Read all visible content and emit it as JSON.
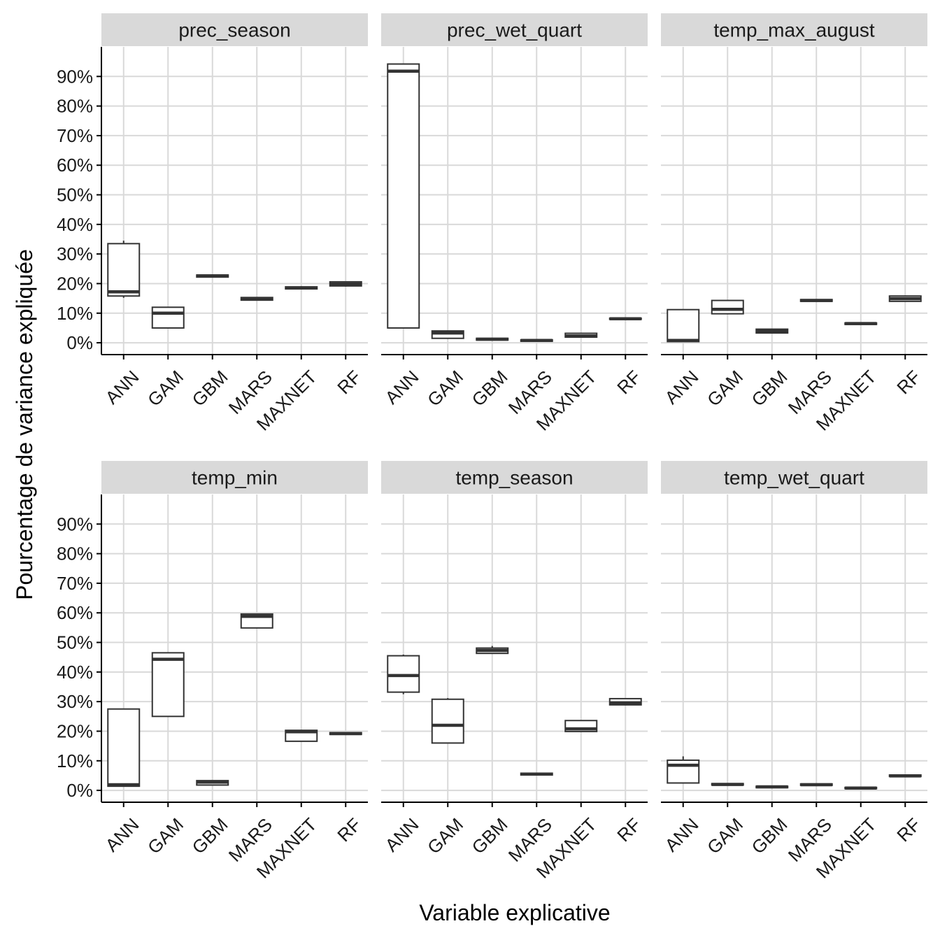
{
  "chart_data": {
    "type": "boxplot",
    "xlabel": "Variable explicative",
    "ylabel": "Pourcentage de variance expliquée",
    "ylim": [
      -4,
      100
    ],
    "yticks": [
      0,
      10,
      20,
      30,
      40,
      50,
      60,
      70,
      80,
      90
    ],
    "ytick_labels": [
      "0%",
      "10%",
      "20%",
      "30%",
      "40%",
      "50%",
      "60%",
      "70%",
      "80%",
      "90%"
    ],
    "categories": [
      "ANN",
      "GAM",
      "GBM",
      "MARS",
      "MAXNET",
      "RF"
    ],
    "grid": true,
    "colors": {
      "strip_bg": "#d9d9d9",
      "grid": "#d9d9d9",
      "box_line": "#333333",
      "axis": "#000000"
    },
    "panels": [
      {
        "title": "prec_season",
        "boxes": [
          {
            "category": "ANN",
            "min": 15.2,
            "q1": 15.8,
            "median": 17.2,
            "q3": 33.5,
            "max": 34.5
          },
          {
            "category": "GAM",
            "min": 5.0,
            "q1": 5.0,
            "median": 10.0,
            "q3": 12.0,
            "max": 12.0
          },
          {
            "category": "GBM",
            "min": 22.0,
            "q1": 22.2,
            "median": 22.6,
            "q3": 22.9,
            "max": 23.1
          },
          {
            "category": "MARS",
            "min": 14.2,
            "q1": 14.4,
            "median": 14.9,
            "q3": 15.3,
            "max": 15.5
          },
          {
            "category": "MAXNET",
            "min": 18.0,
            "q1": 18.2,
            "median": 18.5,
            "q3": 18.9,
            "max": 19.1
          },
          {
            "category": "RF",
            "min": 19.0,
            "q1": 19.2,
            "median": 19.8,
            "q3": 20.6,
            "max": 20.8
          }
        ]
      },
      {
        "title": "prec_wet_quart",
        "boxes": [
          {
            "category": "ANN",
            "min": 5.0,
            "q1": 5.0,
            "median": 91.8,
            "q3": 94.2,
            "max": 94.2
          },
          {
            "category": "GAM",
            "min": 1.5,
            "q1": 1.5,
            "median": 3.3,
            "q3": 4.0,
            "max": 4.0
          },
          {
            "category": "GBM",
            "min": 0.8,
            "q1": 0.9,
            "median": 1.2,
            "q3": 1.5,
            "max": 1.6
          },
          {
            "category": "MARS",
            "min": 0.4,
            "q1": 0.5,
            "median": 0.8,
            "q3": 1.0,
            "max": 1.1
          },
          {
            "category": "MAXNET",
            "min": 1.8,
            "q1": 1.9,
            "median": 2.3,
            "q3": 3.2,
            "max": 3.3
          },
          {
            "category": "RF",
            "min": 7.8,
            "q1": 7.9,
            "median": 8.1,
            "q3": 8.3,
            "max": 8.4
          }
        ]
      },
      {
        "title": "temp_max_august",
        "boxes": [
          {
            "category": "ANN",
            "min": 0.3,
            "q1": 0.4,
            "median": 0.8,
            "q3": 11.2,
            "max": 11.2
          },
          {
            "category": "GAM",
            "min": 9.8,
            "q1": 9.8,
            "median": 11.3,
            "q3": 14.3,
            "max": 14.3
          },
          {
            "category": "GBM",
            "min": 3.3,
            "q1": 3.3,
            "median": 3.9,
            "q3": 4.6,
            "max": 4.7
          },
          {
            "category": "MARS",
            "min": 13.9,
            "q1": 14.0,
            "median": 14.3,
            "q3": 14.6,
            "max": 14.7
          },
          {
            "category": "MAXNET",
            "min": 6.1,
            "q1": 6.2,
            "median": 6.5,
            "q3": 6.7,
            "max": 6.8
          },
          {
            "category": "RF",
            "min": 14.0,
            "q1": 14.0,
            "median": 14.9,
            "q3": 15.8,
            "max": 15.8
          }
        ]
      },
      {
        "title": "temp_min",
        "boxes": [
          {
            "category": "ANN",
            "min": 1.3,
            "q1": 1.4,
            "median": 1.9,
            "q3": 27.5,
            "max": 27.5
          },
          {
            "category": "GAM",
            "min": 25.0,
            "q1": 25.0,
            "median": 44.3,
            "q3": 46.5,
            "max": 46.5
          },
          {
            "category": "GBM",
            "min": 1.7,
            "q1": 1.8,
            "median": 2.8,
            "q3": 3.3,
            "max": 3.4
          },
          {
            "category": "MARS",
            "min": 54.8,
            "q1": 54.9,
            "median": 58.8,
            "q3": 59.6,
            "max": 59.8
          },
          {
            "category": "MAXNET",
            "min": 16.5,
            "q1": 16.6,
            "median": 19.8,
            "q3": 20.3,
            "max": 20.4
          },
          {
            "category": "RF",
            "min": 18.8,
            "q1": 18.9,
            "median": 19.2,
            "q3": 19.5,
            "max": 19.6
          }
        ]
      },
      {
        "title": "temp_season",
        "boxes": [
          {
            "category": "ANN",
            "min": 32.5,
            "q1": 33.2,
            "median": 38.8,
            "q3": 45.5,
            "max": 45.9
          },
          {
            "category": "GAM",
            "min": 16.0,
            "q1": 16.0,
            "median": 22.0,
            "q3": 30.8,
            "max": 31.2
          },
          {
            "category": "GBM",
            "min": 46.2,
            "q1": 46.3,
            "median": 47.3,
            "q3": 48.1,
            "max": 48.8
          },
          {
            "category": "MARS",
            "min": 5.1,
            "q1": 5.2,
            "median": 5.5,
            "q3": 5.8,
            "max": 5.9
          },
          {
            "category": "MAXNET",
            "min": 19.8,
            "q1": 19.9,
            "median": 20.8,
            "q3": 23.6,
            "max": 23.7
          },
          {
            "category": "RF",
            "min": 28.8,
            "q1": 28.9,
            "median": 29.6,
            "q3": 31.0,
            "max": 31.2
          }
        ]
      },
      {
        "title": "temp_wet_quart",
        "boxes": [
          {
            "category": "ANN",
            "min": 2.5,
            "q1": 2.5,
            "median": 8.5,
            "q3": 10.2,
            "max": 11.5
          },
          {
            "category": "GAM",
            "min": 1.7,
            "q1": 1.8,
            "median": 2.0,
            "q3": 2.3,
            "max": 2.4
          },
          {
            "category": "GBM",
            "min": 0.8,
            "q1": 0.9,
            "median": 1.2,
            "q3": 1.4,
            "max": 1.5
          },
          {
            "category": "MARS",
            "min": 1.6,
            "q1": 1.7,
            "median": 1.9,
            "q3": 2.2,
            "max": 2.3
          },
          {
            "category": "MAXNET",
            "min": 0.5,
            "q1": 0.6,
            "median": 0.8,
            "q3": 1.0,
            "max": 1.1
          },
          {
            "category": "RF",
            "min": 4.6,
            "q1": 4.7,
            "median": 4.9,
            "q3": 5.2,
            "max": 5.3
          }
        ]
      }
    ]
  }
}
